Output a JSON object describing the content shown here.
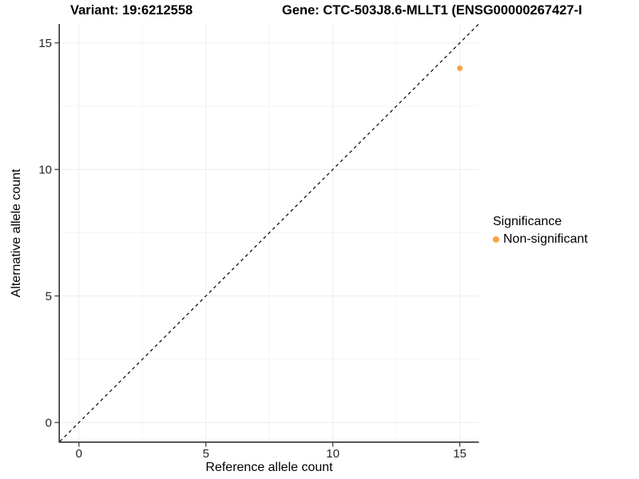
{
  "header": {
    "variant_title": "Variant: 19:6212558",
    "gene_title": "Gene: CTC-503J8.6-MLLT1 (ENSG00000267427-I"
  },
  "chart_data": {
    "type": "scatter",
    "title_left": "Variant: 19:6212558",
    "title_right": "Gene: CTC-503J8.6-MLLT1 (ENSG00000267427-I",
    "xlabel": "Reference allele count",
    "ylabel": "Alternative allele count",
    "xlim": [
      -0.75,
      15.75
    ],
    "ylim": [
      -0.75,
      15.75
    ],
    "xticks": [
      0,
      5,
      10,
      15
    ],
    "yticks": [
      0,
      5,
      10,
      15
    ],
    "minor_ticks": [
      2.5,
      7.5,
      12.5
    ],
    "grid": true,
    "identity_line": {
      "style": "dashed",
      "from": [
        -0.75,
        -0.75
      ],
      "to": [
        15.75,
        15.75
      ],
      "color": "#000000"
    },
    "series": [
      {
        "name": "Non-significant",
        "color": "#F9A242",
        "points": [
          [
            15,
            14
          ]
        ]
      }
    ],
    "legend": {
      "title": "Significance",
      "position": "right",
      "items": [
        {
          "label": "Non-significant",
          "color": "#F9A242"
        }
      ]
    },
    "colors": {
      "axis": "#333333",
      "tick_label": "#262626",
      "grid_major": "#ededed",
      "grid_minor": "#f6f6f6"
    }
  }
}
